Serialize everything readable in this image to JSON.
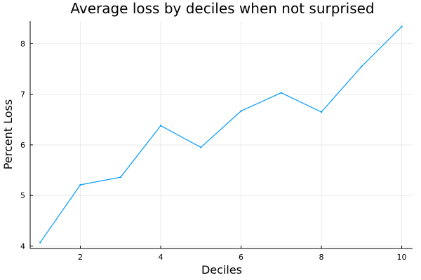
{
  "chart_data": {
    "type": "line",
    "title": "Average loss by deciles when not surprised",
    "xlabel": "Deciles",
    "ylabel": "Percent Loss",
    "x": [
      1,
      2,
      3,
      4,
      5,
      6,
      7,
      8,
      9,
      10
    ],
    "series": [
      {
        "values": [
          4.07,
          5.21,
          5.36,
          6.38,
          5.95,
          6.67,
          7.03,
          6.65,
          7.55,
          8.34
        ],
        "color": "#009af9"
      }
    ],
    "xlim": [
      0.75,
      10.27
    ],
    "ylim": [
      3.95,
      8.45
    ],
    "xticks": [
      2,
      4,
      6,
      8,
      10
    ],
    "yticks": [
      4,
      5,
      6,
      7,
      8
    ],
    "xtick_labels": [
      "2",
      "4",
      "6",
      "8",
      "10"
    ],
    "ytick_labels": [
      "4",
      "5",
      "6",
      "7",
      "8"
    ],
    "grid": true,
    "legend": "none"
  }
}
